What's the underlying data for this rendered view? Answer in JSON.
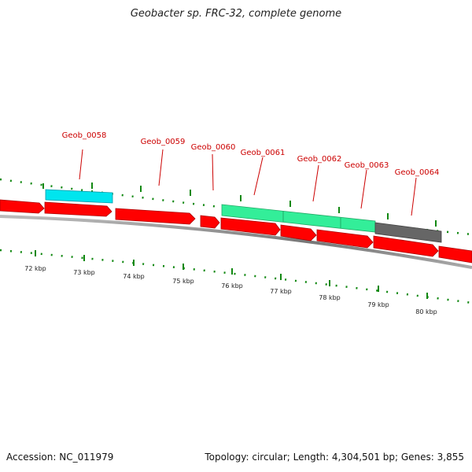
{
  "title": "Geobacter sp. FRC-32, complete genome",
  "footer": {
    "accession": "Accession: NC_011979",
    "summary": "Topology: circular; Length: 4,304,501 bp; Genes: 3,855"
  },
  "gene_labels": [
    "Geob_0058",
    "Geob_0059",
    "Geob_0060",
    "Geob_0061",
    "Geob_0062",
    "Geob_0063",
    "Geob_0064"
  ],
  "axis_labels": [
    "72 kbp",
    "73 kbp",
    "74 kbp",
    "75 kbp",
    "76 kbp",
    "77 kbp",
    "78 kbp",
    "79 kbp",
    "80 kbp"
  ],
  "colors": {
    "gene": "#ff0000",
    "gene_label": "#cc0000",
    "highlight_cyan": "#00e5ee",
    "highlight_green": "#33ee99",
    "highlight_gray": "#666666",
    "tick": "#118811",
    "backbone": "#888888"
  }
}
